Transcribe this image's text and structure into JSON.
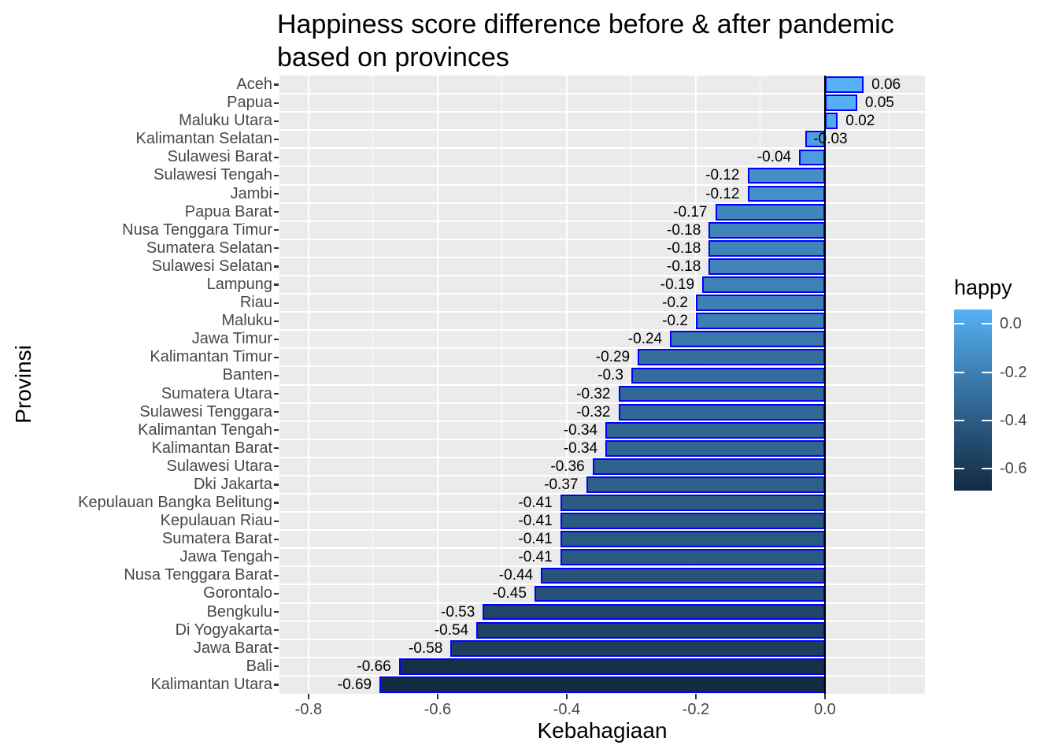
{
  "title": "Happiness score difference before & after pandemic\nbased on provinces",
  "chart_data": {
    "type": "bar",
    "orientation": "horizontal",
    "title": "Happiness score difference before & after pandemic based on provinces",
    "xlabel": "Kebahagiaan",
    "ylabel": "Provinsi",
    "panel_background": "#EBEBEB",
    "gridline_color": "#ffffff",
    "bar_stroke": "#0000FF",
    "zero_line_color": "#000000",
    "x_axis": {
      "range": [
        -0.845,
        0.155
      ],
      "ticks": [
        -0.8,
        -0.6,
        -0.4,
        -0.2,
        0.0
      ],
      "tick_labels": [
        "-0.8",
        "-0.6",
        "-0.4",
        "-0.2",
        "0.0"
      ],
      "minor_gridlines": [
        -0.7,
        -0.5,
        -0.3,
        -0.1,
        0.1
      ],
      "grid": true
    },
    "legend": {
      "title": "happy",
      "position": "right",
      "domain": [
        -0.69,
        0.06
      ],
      "low_color": "#132B43",
      "high_color": "#56B1F7",
      "tick_values": [
        0.0,
        -0.2,
        -0.4,
        -0.6
      ],
      "tick_labels": [
        "0.0",
        "-0.2",
        "-0.4",
        "-0.6"
      ]
    },
    "bars": [
      {
        "province": "Aceh",
        "value": 0.06,
        "label": "0.06",
        "label_side": "after"
      },
      {
        "province": "Papua",
        "value": 0.05,
        "label": "0.05",
        "label_side": "after"
      },
      {
        "province": "Maluku Utara",
        "value": 0.02,
        "label": "0.02",
        "label_side": "after"
      },
      {
        "province": "Kalimantan Selatan",
        "value": -0.03,
        "label": "-0.03",
        "label_side": "after"
      },
      {
        "province": "Sulawesi Barat",
        "value": -0.04,
        "label": "-0.04",
        "label_side": "before"
      },
      {
        "province": "Sulawesi Tengah",
        "value": -0.12,
        "label": "-0.12",
        "label_side": "before"
      },
      {
        "province": "Jambi",
        "value": -0.12,
        "label": "-0.12",
        "label_side": "before"
      },
      {
        "province": "Papua Barat",
        "value": -0.17,
        "label": "-0.17",
        "label_side": "before"
      },
      {
        "province": "Nusa Tenggara Timur",
        "value": -0.18,
        "label": "-0.18",
        "label_side": "before"
      },
      {
        "province": "Sumatera Selatan",
        "value": -0.18,
        "label": "-0.18",
        "label_side": "before"
      },
      {
        "province": "Sulawesi Selatan",
        "value": -0.18,
        "label": "-0.18",
        "label_side": "before"
      },
      {
        "province": "Lampung",
        "value": -0.19,
        "label": "-0.19",
        "label_side": "before"
      },
      {
        "province": "Riau",
        "value": -0.2,
        "label": "-0.2",
        "label_side": "before"
      },
      {
        "province": "Maluku",
        "value": -0.2,
        "label": "-0.2",
        "label_side": "before"
      },
      {
        "province": "Jawa Timur",
        "value": -0.24,
        "label": "-0.24",
        "label_side": "before"
      },
      {
        "province": "Kalimantan Timur",
        "value": -0.29,
        "label": "-0.29",
        "label_side": "before"
      },
      {
        "province": "Banten",
        "value": -0.3,
        "label": "-0.3",
        "label_side": "before"
      },
      {
        "province": "Sumatera Utara",
        "value": -0.32,
        "label": "-0.32",
        "label_side": "before"
      },
      {
        "province": "Sulawesi Tenggara",
        "value": -0.32,
        "label": "-0.32",
        "label_side": "before"
      },
      {
        "province": "Kalimantan Tengah",
        "value": -0.34,
        "label": "-0.34",
        "label_side": "before"
      },
      {
        "province": "Kalimantan Barat",
        "value": -0.34,
        "label": "-0.34",
        "label_side": "before"
      },
      {
        "province": "Sulawesi Utara",
        "value": -0.36,
        "label": "-0.36",
        "label_side": "before"
      },
      {
        "province": "Dki Jakarta",
        "value": -0.37,
        "label": "-0.37",
        "label_side": "before"
      },
      {
        "province": "Kepulauan Bangka Belitung",
        "value": -0.41,
        "label": "-0.41",
        "label_side": "before"
      },
      {
        "province": "Kepulauan Riau",
        "value": -0.41,
        "label": "-0.41",
        "label_side": "before"
      },
      {
        "province": "Sumatera Barat",
        "value": -0.41,
        "label": "-0.41",
        "label_side": "before"
      },
      {
        "province": "Jawa Tengah",
        "value": -0.41,
        "label": "-0.41",
        "label_side": "before"
      },
      {
        "province": "Nusa Tenggara Barat",
        "value": -0.44,
        "label": "-0.44",
        "label_side": "before"
      },
      {
        "province": "Gorontalo",
        "value": -0.45,
        "label": "-0.45",
        "label_side": "before"
      },
      {
        "province": "Bengkulu",
        "value": -0.53,
        "label": "-0.53",
        "label_side": "before"
      },
      {
        "province": "Di Yogyakarta",
        "value": -0.54,
        "label": "-0.54",
        "label_side": "before"
      },
      {
        "province": "Jawa Barat",
        "value": -0.58,
        "label": "-0.58",
        "label_side": "before"
      },
      {
        "province": "Bali",
        "value": -0.66,
        "label": "-0.66",
        "label_side": "before"
      },
      {
        "province": "Kalimantan Utara",
        "value": -0.69,
        "label": "-0.69",
        "label_side": "before"
      }
    ]
  }
}
